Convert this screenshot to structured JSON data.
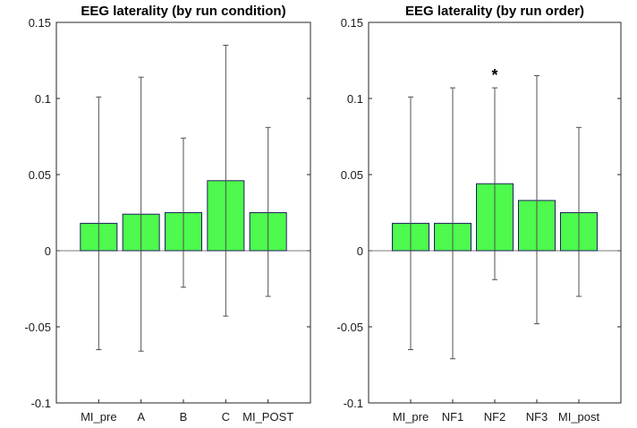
{
  "colors": {
    "bar_fill": "#4dfa4d",
    "bar_edge": "#1f1f5e",
    "error": "#505050"
  },
  "chart_data": [
    {
      "type": "bar",
      "title": "EEG laterality (by run condition)",
      "xlabel": "",
      "ylabel": "",
      "ylim": [
        -0.1,
        0.15
      ],
      "yticks": [
        -0.1,
        -0.05,
        0,
        0.05,
        0.1,
        0.15
      ],
      "ytick_labels": [
        "-0.1",
        "-0.05",
        "0",
        "0.05",
        "0.1",
        "0.15"
      ],
      "categories": [
        "MI_pre",
        "A",
        "B",
        "C",
        "MI_POST"
      ],
      "values": [
        0.018,
        0.024,
        0.025,
        0.046,
        0.025
      ],
      "error_low": [
        -0.065,
        -0.066,
        -0.024,
        -0.043,
        -0.03
      ],
      "error_high": [
        0.101,
        0.114,
        0.074,
        0.135,
        0.081
      ],
      "annotations": []
    },
    {
      "type": "bar",
      "title": "EEG laterality (by run order)",
      "xlabel": "",
      "ylabel": "",
      "ylim": [
        -0.1,
        0.15
      ],
      "yticks": [
        -0.1,
        -0.05,
        0,
        0.05,
        0.1,
        0.15
      ],
      "ytick_labels": [
        "-0.1",
        "-0.05",
        "0",
        "0.05",
        "0.1",
        "0.15"
      ],
      "categories": [
        "MI_pre",
        "NF1",
        "NF2",
        "NF3",
        "MI_post"
      ],
      "values": [
        0.018,
        0.018,
        0.044,
        0.033,
        0.025
      ],
      "error_low": [
        -0.065,
        -0.071,
        -0.019,
        -0.048,
        -0.03
      ],
      "error_high": [
        0.101,
        0.107,
        0.107,
        0.115,
        0.081
      ],
      "annotations": [
        {
          "category": "NF2",
          "text": "*"
        }
      ]
    }
  ]
}
